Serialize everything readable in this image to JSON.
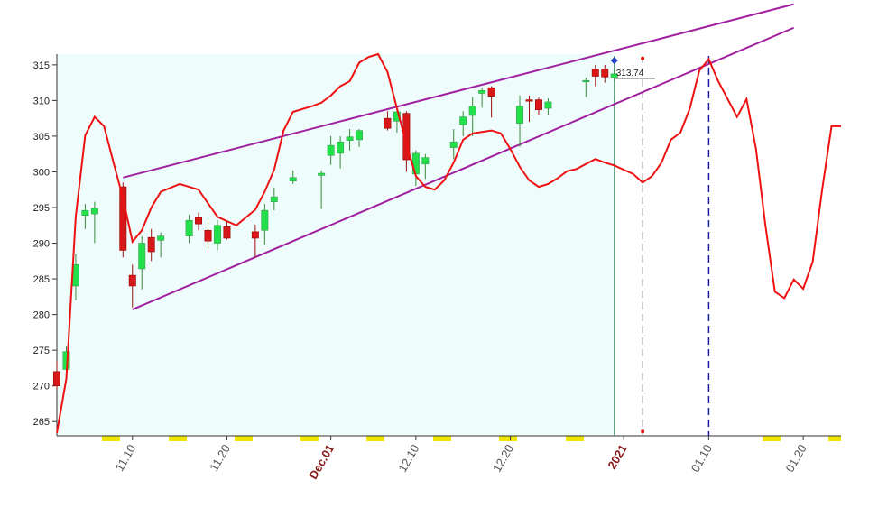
{
  "chart_data": {
    "type": "candlestick",
    "xlim": [
      "11.02",
      "01.24"
    ],
    "ylim": [
      263,
      316.5
    ],
    "yticks": [
      265,
      270,
      275,
      280,
      285,
      290,
      295,
      300,
      305,
      310,
      315
    ],
    "xticks": [
      {
        "value": "11.10",
        "label": "11.10"
      },
      {
        "value": "11.20",
        "label": "11.20"
      },
      {
        "value": "12.01",
        "label": "Dec.01",
        "color": "#8b1a1a"
      },
      {
        "value": "12.10",
        "label": "12.10"
      },
      {
        "value": "12.20",
        "label": "12.20"
      },
      {
        "value": "01.01",
        "label": "2021",
        "color": "#8b1a1a"
      },
      {
        "value": "01.10",
        "label": "01.10"
      },
      {
        "value": "01.20",
        "label": "01.20"
      }
    ],
    "candles": {
      "up_color": "#22e04a",
      "down_color": "#d81818",
      "x": [
        "11.02",
        "11.03",
        "11.04",
        "11.05",
        "11.06",
        "11.09",
        "11.10",
        "11.11",
        "11.12",
        "11.13",
        "11.16",
        "11.17",
        "11.18",
        "11.19",
        "11.20",
        "11.23",
        "11.24",
        "11.25",
        "11.27",
        "11.30",
        "12.01",
        "12.02",
        "12.03",
        "12.04",
        "12.07",
        "12.08",
        "12.09",
        "12.10",
        "12.11",
        "12.14",
        "12.15",
        "12.16",
        "12.17",
        "12.18",
        "12.21",
        "12.22",
        "12.23",
        "12.24",
        "12.28",
        "12.29",
        "12.30",
        "12.31"
      ],
      "open": [
        272,
        272.3,
        284,
        293.9,
        294.1,
        297.9,
        285.5,
        286.4,
        290.8,
        290.4,
        291,
        293.6,
        291.8,
        290,
        292.3,
        291.6,
        291.8,
        295.8,
        298.7,
        299.5,
        302.3,
        302.6,
        304.4,
        304.5,
        307.5,
        307.1,
        308.2,
        299.7,
        301.1,
        303.4,
        306.6,
        307.9,
        311,
        311.8,
        306.8,
        310.1,
        310.1,
        308.9,
        312.6,
        314.4,
        314.4,
        313.2
      ],
      "high": [
        273.5,
        275.5,
        288.5,
        295.5,
        295.8,
        298.5,
        287,
        291,
        292,
        291.5,
        294,
        294.3,
        293.5,
        293.2,
        293,
        292.6,
        295.5,
        297.8,
        300.2,
        300.2,
        305,
        305,
        306,
        306,
        308.5,
        309.3,
        308.5,
        303,
        302.5,
        306,
        308.5,
        310.5,
        311.8,
        312,
        310.7,
        310.7,
        310.4,
        310.3,
        313.2,
        315,
        315,
        314.3
      ],
      "low": [
        269.5,
        271,
        282,
        292,
        290,
        288,
        281,
        283.5,
        287.5,
        288,
        290,
        291.8,
        289.3,
        289,
        290.5,
        288,
        289.8,
        294.6,
        298.3,
        294.8,
        301,
        300.5,
        303,
        303.5,
        305.8,
        305.5,
        300,
        298,
        299,
        301.8,
        305,
        305,
        309,
        307.6,
        303.5,
        307,
        308,
        308,
        310.5,
        312,
        312.5,
        312.7
      ],
      "close": [
        270,
        274.8,
        287,
        294.6,
        294.9,
        289,
        284,
        290,
        288.8,
        291,
        293.2,
        292.7,
        290.3,
        292.5,
        290.7,
        290.7,
        294.6,
        296.5,
        299.2,
        299.8,
        303.7,
        304.2,
        304.9,
        305.8,
        306.1,
        308.4,
        301.7,
        302.6,
        302,
        304.2,
        307.7,
        309.2,
        311.4,
        310.6,
        309.2,
        309.9,
        308.7,
        309.8,
        312.8,
        313.4,
        313.3,
        313.74
      ]
    },
    "line": {
      "color": "#ee1111",
      "x": [
        "11.02",
        "11.03",
        "11.04",
        "11.05",
        "11.06",
        "11.07",
        "11.08",
        "11.09",
        "11.10",
        "11.11",
        "11.12",
        "11.13",
        "11.15",
        "11.17",
        "11.19",
        "11.21",
        "11.23",
        "11.24",
        "11.25",
        "11.26",
        "11.27",
        "11.29",
        "11.30",
        "12.01",
        "12.02",
        "12.03",
        "12.04",
        "12.05",
        "12.06",
        "12.07",
        "12.08",
        "12.09",
        "12.10",
        "12.11",
        "12.12",
        "12.13",
        "12.14",
        "12.15",
        "12.16",
        "12.18",
        "12.19",
        "12.20",
        "12.21",
        "12.22",
        "12.23",
        "12.24",
        "12.25",
        "12.26",
        "12.27",
        "12.28",
        "12.29",
        "12.30",
        "12.31",
        "01.01",
        "01.02",
        "01.03",
        "01.04",
        "01.05",
        "01.06",
        "01.07",
        "01.08",
        "01.09",
        "01.10",
        "01.11",
        "01.12",
        "01.13",
        "01.14",
        "01.15",
        "01.16",
        "01.17",
        "01.18",
        "01.19",
        "01.20",
        "01.21",
        "01.22",
        "01.23",
        "01.24"
      ],
      "values": [
        263.4,
        271,
        293.7,
        305.1,
        307.7,
        306.4,
        301.3,
        296.3,
        290.2,
        291.8,
        295,
        297.2,
        298.3,
        297.5,
        293.7,
        292.5,
        294.7,
        297.2,
        300.3,
        305.8,
        308.4,
        309.2,
        309.7,
        310.7,
        312,
        312.7,
        315.3,
        316.1,
        316.5,
        314,
        308.9,
        303.9,
        299.4,
        297.9,
        297.5,
        298.8,
        301.3,
        304.5,
        305.4,
        305.8,
        305.4,
        303.2,
        300.7,
        298.8,
        297.9,
        298.3,
        299.1,
        300.1,
        300.4,
        301.1,
        301.8,
        301.3,
        300.9,
        300.3,
        299.7,
        298.5,
        299.4,
        301.3,
        304.5,
        305.5,
        308.9,
        314.2,
        315.8,
        312.7,
        310.2,
        307.7,
        310.2,
        303.2,
        292.5,
        283.2,
        282.3,
        284.9,
        283.6,
        287.4,
        297.5,
        306.4,
        306.4
      ]
    },
    "trendlines": {
      "color": "#a020a0",
      "lines": [
        {
          "x": [
            "11.09",
            "01.19"
          ],
          "values": [
            299.2,
            323.5
          ]
        },
        {
          "x": [
            "11.10",
            "01.19"
          ],
          "values": [
            280.7,
            320.2
          ]
        }
      ]
    },
    "vlines": [
      {
        "x": "12.31",
        "color": "#2e8b57",
        "dash": false
      },
      {
        "x": "01.03",
        "color": "#b0b0b0",
        "dash": true
      },
      {
        "x": "01.10",
        "color": "#1a1aa0",
        "dash": true
      }
    ],
    "last_price": {
      "x": "12.31",
      "value": 313.74
    },
    "markers": [
      {
        "x": "12.31",
        "value": 315.6,
        "color": "#2040c0",
        "shape": "diamond"
      },
      {
        "x": "01.03",
        "value": 315.9,
        "color": "#ee1111",
        "shape": "dot"
      },
      {
        "x": "01.03",
        "value": 263.6,
        "color": "#ee1111",
        "shape": "dot"
      }
    ]
  }
}
